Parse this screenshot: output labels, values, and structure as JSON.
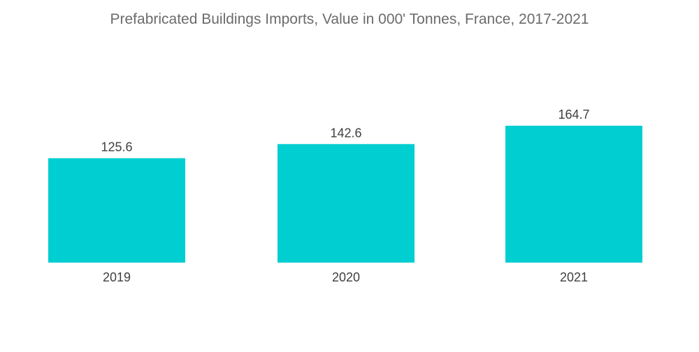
{
  "chart_data": {
    "type": "bar",
    "title": "Prefabricated Buildings Imports, Value in 000' Tonnes, France, 2017-2021",
    "categories": [
      "2019",
      "2020",
      "2021"
    ],
    "values": [
      125.6,
      142.6,
      164.7
    ],
    "value_labels": [
      "125.6",
      "142.6",
      "164.7"
    ],
    "bar_color": "#00CED1",
    "ylim": [
      0,
      164.7
    ],
    "grid": false,
    "legend": "none"
  }
}
